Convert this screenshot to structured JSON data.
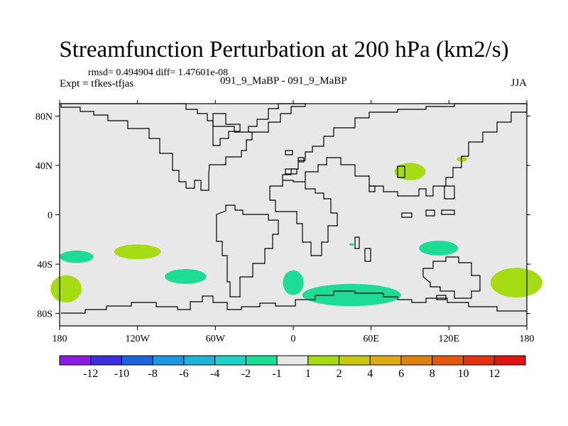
{
  "header": {
    "title": "Streamfunction Perturbation at 200 hPa (km2/s)",
    "stats": "rmsd= 0.494904 diff= 1.47601e-08",
    "expt": "Expt = tfkes-tfjas",
    "center": "091_9_MaBP - 091_9_MaBP",
    "season": "JJA"
  },
  "chart_data": {
    "type": "heatmap",
    "title": "Streamfunction Perturbation at 200 hPa (km2/s)",
    "xlabel": "",
    "ylabel": "",
    "xlim": [
      -180,
      180
    ],
    "ylim": [
      -90,
      90
    ],
    "x_ticks": [
      {
        "value": -180,
        "label": "180"
      },
      {
        "value": -120,
        "label": "120W"
      },
      {
        "value": -60,
        "label": "60W"
      },
      {
        "value": 0,
        "label": "0"
      },
      {
        "value": 60,
        "label": "60E"
      },
      {
        "value": 120,
        "label": "120E"
      },
      {
        "value": 180,
        "label": "180"
      }
    ],
    "y_ticks": [
      {
        "value": 80,
        "label": "80N"
      },
      {
        "value": 40,
        "label": "40N"
      },
      {
        "value": 0,
        "label": "0"
      },
      {
        "value": -40,
        "label": "40S"
      },
      {
        "value": -80,
        "label": "80S"
      }
    ],
    "background_level": "-1 to 1",
    "colorbar": {
      "levels": [
        -12,
        -10,
        -8,
        -6,
        -4,
        -2,
        -1,
        1,
        2,
        4,
        6,
        8,
        10,
        12
      ],
      "colors": [
        "#8a1ee0",
        "#3c30d8",
        "#1e64d8",
        "#1e96e0",
        "#1eb4d8",
        "#1ed2c8",
        "#1edc96",
        "#e8e8e8",
        "#a6dc14",
        "#c8c814",
        "#dcaa14",
        "#dc8214",
        "#e05a14",
        "#e03214",
        "#e01414"
      ]
    },
    "regions": [
      {
        "level": "1 to 2",
        "lon": 90,
        "lat": 35,
        "dlon": 12,
        "dlat": 7
      },
      {
        "level": "1 to 2",
        "lon": 130,
        "lat": 45,
        "dlon": 4,
        "dlat": 2
      },
      {
        "level": "1 to 2",
        "lon": -120,
        "lat": -30,
        "dlon": 18,
        "dlat": 6
      },
      {
        "level": "1 to 2",
        "lon": -175,
        "lat": -60,
        "dlon": 12,
        "dlat": 11
      },
      {
        "level": "1 to 2",
        "lon": 172,
        "lat": -55,
        "dlon": 20,
        "dlat": 12
      },
      {
        "level": "-2 to -1",
        "lon": -167,
        "lat": -34,
        "dlon": 13,
        "dlat": 5
      },
      {
        "level": "-2 to -1",
        "lon": -83,
        "lat": -50,
        "dlon": 16,
        "dlat": 6
      },
      {
        "level": "-2 to -1",
        "lon": 112,
        "lat": -27,
        "dlon": 15,
        "dlat": 6
      },
      {
        "level": "-2 to -1",
        "lon": 45,
        "lat": -65,
        "dlon": 38,
        "dlat": 9
      },
      {
        "level": "-2 to -1",
        "lon": 0,
        "lat": -55,
        "dlon": 8,
        "dlat": 10
      },
      {
        "level": "-2 to -1",
        "lon": 45,
        "lat": -24,
        "dlon": 2,
        "dlat": 1
      }
    ]
  }
}
